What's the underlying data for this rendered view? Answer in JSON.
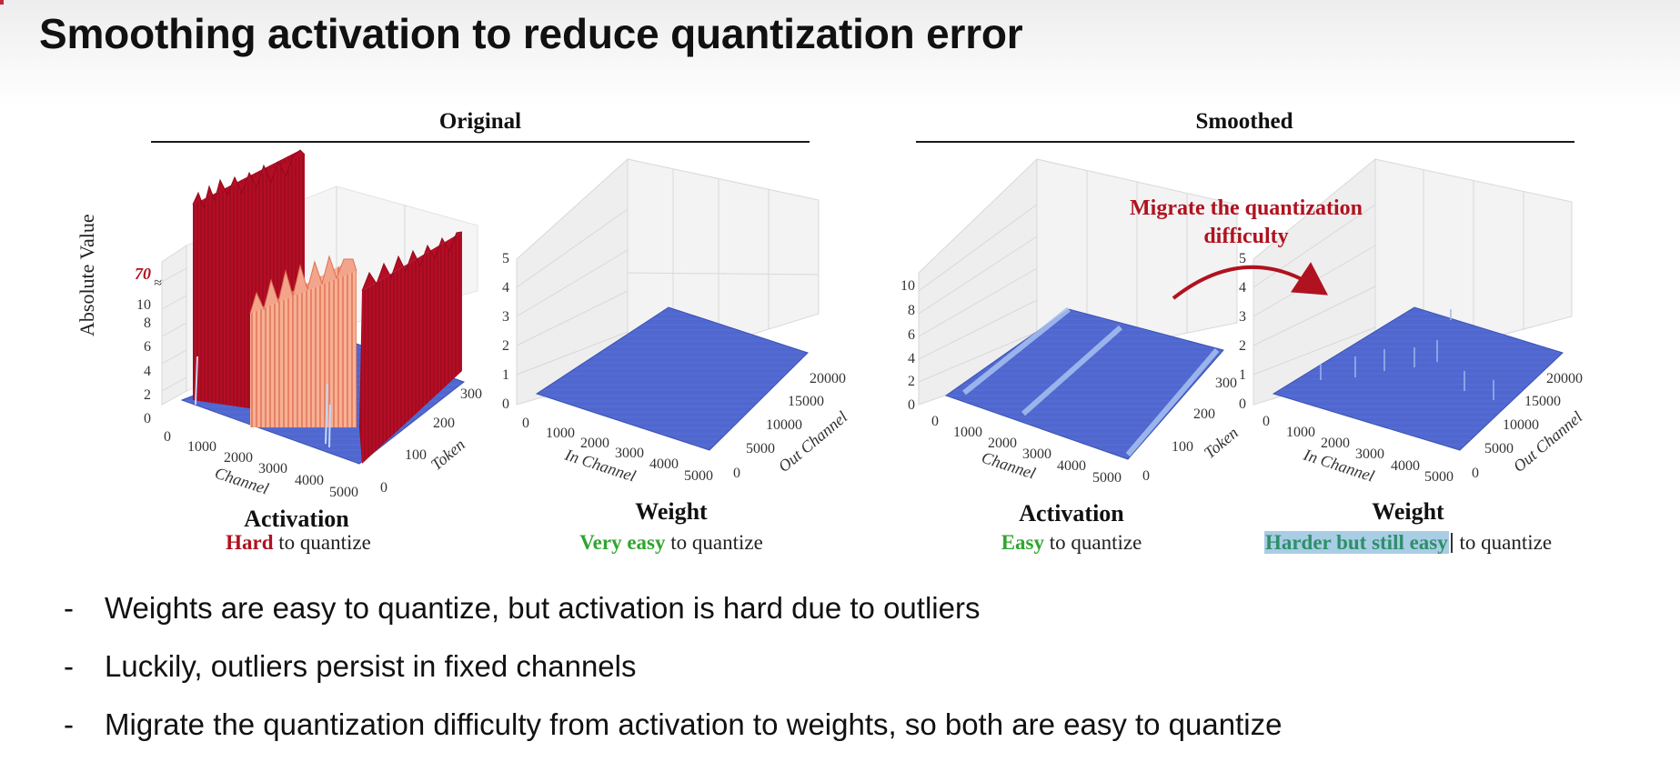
{
  "slide": {
    "title": "Smoothing activation to reduce quantization error"
  },
  "sections": {
    "original": "Original",
    "smoothed": "Smoothed"
  },
  "plots": {
    "orig_activation": {
      "title": "Activation",
      "caption_keyword": "Hard",
      "caption_rest": " to quantize",
      "z_ticks": [
        "0",
        "2",
        "4",
        "6",
        "8",
        "10"
      ],
      "z_outlier_tick": "70",
      "z_label": "Absolute Value",
      "x_ticks": [
        "0",
        "1000",
        "2000",
        "3000",
        "4000",
        "5000"
      ],
      "x_label": "Channel",
      "y_ticks": [
        "0",
        "100",
        "200",
        "300"
      ],
      "y_label": "Token"
    },
    "orig_weight": {
      "title": "Weight",
      "caption_keyword": "Very easy",
      "caption_rest": " to quantize",
      "z_ticks": [
        "0",
        "1",
        "2",
        "3",
        "4",
        "5"
      ],
      "x_ticks": [
        "0",
        "1000",
        "2000",
        "3000",
        "4000",
        "5000"
      ],
      "x_label": "In Channel",
      "y_ticks": [
        "0",
        "5000",
        "10000",
        "15000",
        "20000"
      ],
      "y_label": "Out Channel"
    },
    "smooth_activation": {
      "title": "Activation",
      "caption_keyword": "Easy",
      "caption_rest": " to quantize",
      "z_ticks": [
        "0",
        "2",
        "4",
        "6",
        "8",
        "10"
      ],
      "x_ticks": [
        "0",
        "1000",
        "2000",
        "3000",
        "4000",
        "5000"
      ],
      "x_label": "Channel",
      "y_ticks": [
        "0",
        "100",
        "200",
        "300"
      ],
      "y_label": "Token"
    },
    "smooth_weight": {
      "title": "Weight",
      "caption_keyword": "Harder but still easy",
      "caption_rest": " to quantize",
      "z_ticks": [
        "0",
        "1",
        "2",
        "3",
        "4",
        "5"
      ],
      "x_ticks": [
        "0",
        "1000",
        "2000",
        "3000",
        "4000",
        "5000"
      ],
      "x_label": "In Channel",
      "y_ticks": [
        "0",
        "5000",
        "10000",
        "15000",
        "20000"
      ],
      "y_label": "Out Channel"
    }
  },
  "annotation": {
    "line1": "Migrate the quantization",
    "line2": "difficulty"
  },
  "bullets": [
    "Weights are easy to quantize, but activation is hard due to outliers",
    "Luckily, outliers persist in fixed channels",
    "Migrate the quantization difficulty from activation to weights, so both are easy to quantize"
  ],
  "bullet_marker": "-",
  "colors": {
    "outlier_red": "#b50d25",
    "outlier_salmon": "#f59a80",
    "surface_blue": "#4f67cf",
    "light_blue": "#a8c2f0",
    "highlight_green": "#31a531",
    "annotation_red": "#b0121f"
  }
}
